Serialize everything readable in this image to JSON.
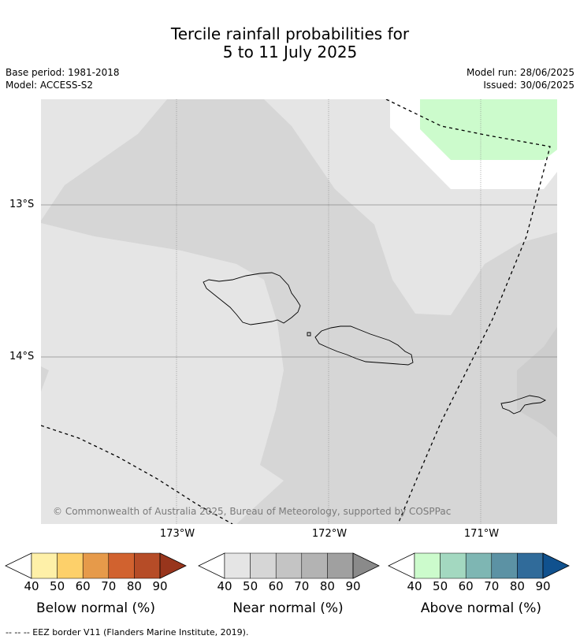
{
  "title": {
    "line1": "Tercile rainfall probabilities for",
    "line2": "5 to 11 July 2025"
  },
  "meta": {
    "base_period": "Base period: 1981-2018",
    "model": "Model: ACCESS-S2",
    "model_run": "Model run: 28/06/2025",
    "issued": "Issued: 30/06/2025"
  },
  "map": {
    "lat_labels": [
      "13°S",
      "14°S"
    ],
    "lon_labels": [
      "173°W",
      "172°W",
      "171°W"
    ],
    "copyright": "© Commonwealth of Australia 2025, Bureau of Meteorology, supported by COSPPac"
  },
  "legend": {
    "below": {
      "label": "Below normal (%)",
      "colors": [
        "#fef0a8",
        "#fdd06a",
        "#e69a4a",
        "#d1622f",
        "#b64c27",
        "#98351c"
      ],
      "ticks": [
        "40",
        "50",
        "60",
        "70",
        "80",
        "90"
      ]
    },
    "near": {
      "label": "Near normal (%)",
      "colors": [
        "#e5e5e5",
        "#d6d6d6",
        "#c4c4c4",
        "#b3b3b3",
        "#a0a0a0",
        "#8a8a8a"
      ],
      "ticks": [
        "40",
        "50",
        "60",
        "70",
        "80",
        "90"
      ]
    },
    "above": {
      "label": "Above normal (%)",
      "colors": [
        "#ccfbcc",
        "#a3d8c0",
        "#7eb6b3",
        "#5c92a4",
        "#306b9a",
        "#10518e"
      ],
      "ticks": [
        "40",
        "50",
        "60",
        "70",
        "80",
        "90"
      ]
    }
  },
  "footer": "--  --  -- EEZ border V11 (Flanders Marine Institute, 2019)."
}
